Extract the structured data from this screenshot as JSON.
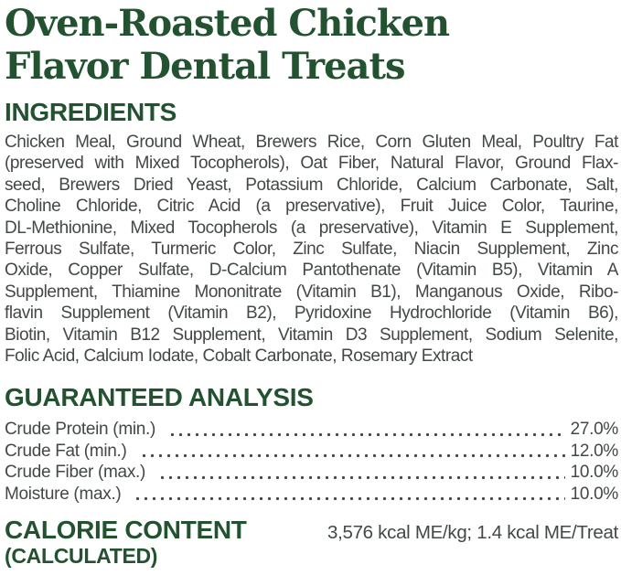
{
  "colors": {
    "brand_green": "#235230",
    "body_text": "#424845"
  },
  "title": {
    "line1": "Oven-Roasted Chicken",
    "line2": "Flavor Dental Treats"
  },
  "ingredients": {
    "heading": "INGREDIENTS",
    "lines": [
      "Chicken Meal, Ground Wheat, Brewers Rice, Corn Gluten Meal, Poultry Fat",
      "(preserved with Mixed Tocopherols), Oat Fiber, Natural Flavor, Ground Flax-",
      "seed, Brewers Dried Yeast, Potassium Chloride, Calcium Carbonate, Salt,",
      "Choline Chloride, Citric Acid (a preservative), Fruit Juice Color, Taurine,",
      "DL-Methionine, Mixed Tocopherols (a preservative), Vitamin E Supplement,",
      "Ferrous Sulfate, Turmeric Color, Zinc Sulfate, Niacin Supplement, Zinc",
      "Oxide, Copper Sulfate, D-Calcium Pantothenate (Vitamin B5), Vitamin A",
      "Supplement, Thiamine Mononitrate (Vitamin B1), Manganous Oxide, Ribo-",
      "flavin Supplement (Vitamin B2), Pyridoxine Hydrochloride (Vitamin B6),",
      "Biotin, Vitamin B12 Supplement, Vitamin D3 Supplement, Sodium Selenite,",
      "Folic Acid, Calcium Iodate, Cobalt Carbonate, Rosemary Extract"
    ]
  },
  "guaranteed_analysis": {
    "heading": "GUARANTEED ANALYSIS",
    "rows": [
      {
        "label": "Crude Protein (min.)",
        "value": "27.0%"
      },
      {
        "label": "Crude Fat (min.)",
        "value": "12.0%"
      },
      {
        "label": "Crude Fiber (max.)",
        "value": "10.0%"
      },
      {
        "label": "Moisture (max.)",
        "value": "10.0%"
      }
    ]
  },
  "calorie_content": {
    "heading_line1": "CALORIE CONTENT",
    "heading_line2": "(CALCULATED)",
    "value": "3,576 kcal ME/kg; 1.4 kcal ME/Treat"
  }
}
